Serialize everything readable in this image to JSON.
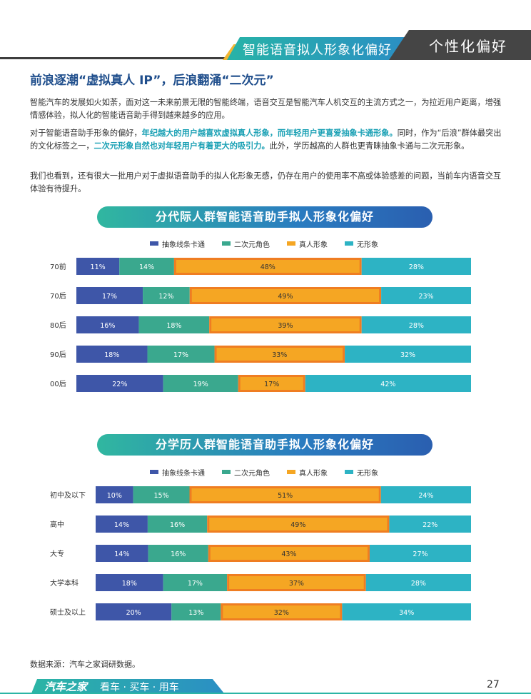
{
  "header": {
    "section_title": "智能语音拟人形象化偏好",
    "chapter_title": "个性化偏好"
  },
  "article": {
    "heading": "前浪逐潮“虚拟真人 IP”，后浪翻涌“二次元”",
    "p1": "智能汽车的发展如火如荼，面对这一未来前景无限的智能终端，语音交互是智能汽车人机交互的主流方式之一，为拉近用户距离，增强情感体验，拟人化的智能语音助手得到越来越多的应用。",
    "p2_a": "对于智能语音助手形象的偏好，",
    "p2_b": "年纪越大的用户越喜欢虚拟真人形象，而年轻用户更喜爱抽象卡通形象。",
    "p2_c": "同时，作为“后浪”群体最突出的文化标签之一，",
    "p2_d": "二次元形象自然也对年轻用户有着更大的吸引力。",
    "p2_e": "此外，学历越高的人群也更青睐抽象卡通与二次元形象。",
    "p3": "我们也看到，还有很大一批用户对于虚拟语音助手的拟人化形象无感，仍存在用户的使用率不高或体验感差的问题，当前车内语音交互体验有待提升。"
  },
  "legend": {
    "items": [
      {
        "label": "抽象线条卡通",
        "color": "#3e56a8"
      },
      {
        "label": "二次元角色",
        "color": "#3aa88e"
      },
      {
        "label": "真人形象",
        "color": "#f5a623"
      },
      {
        "label": "无形象",
        "color": "#2db3c4"
      }
    ]
  },
  "chart_data": [
    {
      "type": "bar",
      "stacked": "100%",
      "orientation": "horizontal",
      "title": "分代际人群智能语音助手拟人形象化偏好",
      "categories": [
        "70前",
        "70后",
        "80后",
        "90后",
        "00后"
      ],
      "series": [
        {
          "name": "抽象线条卡通",
          "values": [
            11,
            17,
            16,
            18,
            22
          ]
        },
        {
          "name": "二次元角色",
          "values": [
            14,
            12,
            18,
            17,
            19
          ]
        },
        {
          "name": "真人形象",
          "values": [
            48,
            49,
            39,
            33,
            17
          ]
        },
        {
          "name": "无形象",
          "values": [
            28,
            23,
            28,
            32,
            42
          ]
        }
      ]
    },
    {
      "type": "bar",
      "stacked": "100%",
      "orientation": "horizontal",
      "title": "分学历人群智能语音助手拟人形象化偏好",
      "categories": [
        "初中及以下",
        "高中",
        "大专",
        "大学本科",
        "硕士及以上"
      ],
      "series": [
        {
          "name": "抽象线条卡通",
          "values": [
            10,
            14,
            14,
            18,
            20
          ]
        },
        {
          "name": "二次元角色",
          "values": [
            15,
            16,
            16,
            17,
            13
          ]
        },
        {
          "name": "真人形象",
          "values": [
            51,
            49,
            43,
            37,
            32
          ]
        },
        {
          "name": "无形象",
          "values": [
            24,
            22,
            27,
            28,
            34
          ]
        }
      ]
    }
  ],
  "footer": {
    "source": "数据来源：汽车之家调研数据。",
    "brand": "汽车之家",
    "slogan": "看车 · 买车 · 用车",
    "page_number": "27"
  }
}
